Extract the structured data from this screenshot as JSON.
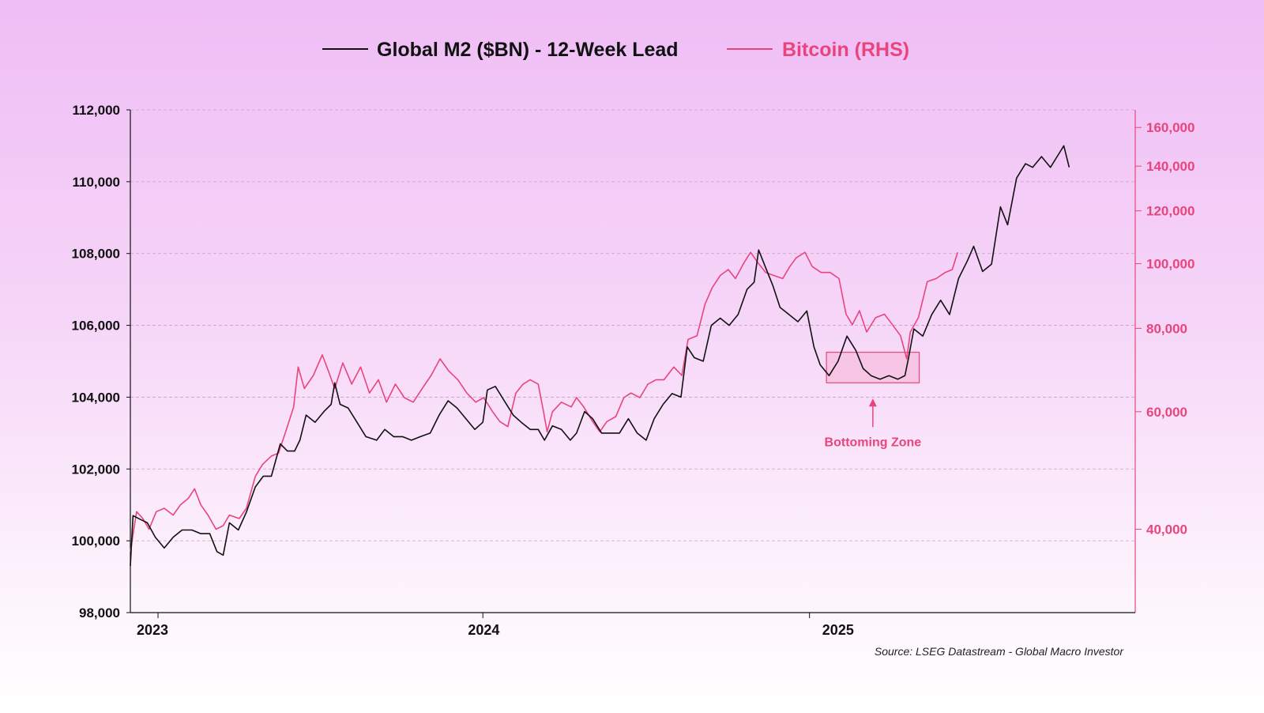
{
  "chart_data": {
    "type": "line",
    "title": "",
    "legend": {
      "placement": "top-center",
      "entries": [
        {
          "label": "Global M2 ($BN) - 12-Week Lead",
          "color": "#111111"
        },
        {
          "label": "Bitcoin (RHS)",
          "color": "#e8457d"
        }
      ]
    },
    "grid": true,
    "x_axis": {
      "tick_labels": [
        "2023",
        "2024",
        "2025"
      ],
      "range": [
        "2022-12-01",
        "2025-12-31"
      ],
      "year_ticks": [
        "2023-01-01",
        "2023-12-31",
        "2024-12-31"
      ]
    },
    "y_left": {
      "label": "",
      "range": [
        98000,
        112000
      ],
      "ticks": [
        98000,
        100000,
        102000,
        104000,
        106000,
        108000,
        110000,
        112000
      ],
      "tick_labels": [
        "98,000",
        "100,000",
        "102,000",
        "104,000",
        "106,000",
        "108,000",
        "110,000",
        "112,000"
      ]
    },
    "y_right": {
      "label": "",
      "scale": "log",
      "range": [
        30000,
        170000
      ],
      "ticks": [
        40000,
        60000,
        80000,
        100000,
        120000,
        140000,
        160000
      ],
      "tick_labels": [
        "40,000",
        "60,000",
        "80,000",
        "100,000",
        "120,000",
        "140,000",
        "160,000"
      ],
      "color": "#e8457d"
    },
    "series": [
      {
        "name": "Global M2 ($BN) - 12-Week Lead",
        "axis": "left",
        "color": "#111111",
        "points": [
          [
            "2022-12-01",
            99300
          ],
          [
            "2022-12-04",
            100700
          ],
          [
            "2022-12-12",
            100600
          ],
          [
            "2022-12-20",
            100500
          ],
          [
            "2022-12-29",
            100100
          ],
          [
            "2023-01-08",
            99800
          ],
          [
            "2023-01-18",
            100100
          ],
          [
            "2023-01-28",
            100300
          ],
          [
            "2023-02-08",
            100300
          ],
          [
            "2023-02-18",
            100200
          ],
          [
            "2023-02-28",
            100200
          ],
          [
            "2023-03-08",
            99700
          ],
          [
            "2023-03-15",
            99600
          ],
          [
            "2023-03-22",
            100500
          ],
          [
            "2023-04-01",
            100300
          ],
          [
            "2023-04-10",
            100800
          ],
          [
            "2023-04-20",
            101500
          ],
          [
            "2023-04-29",
            101800
          ],
          [
            "2023-05-08",
            101800
          ],
          [
            "2023-05-18",
            102700
          ],
          [
            "2023-05-26",
            102500
          ],
          [
            "2023-06-03",
            102500
          ],
          [
            "2023-06-09",
            102800
          ],
          [
            "2023-06-16",
            103500
          ],
          [
            "2023-06-26",
            103300
          ],
          [
            "2023-07-06",
            103600
          ],
          [
            "2023-07-14",
            103800
          ],
          [
            "2023-07-18",
            104400
          ],
          [
            "2023-07-24",
            103800
          ],
          [
            "2023-08-02",
            103700
          ],
          [
            "2023-08-12",
            103300
          ],
          [
            "2023-08-22",
            102900
          ],
          [
            "2023-09-03",
            102800
          ],
          [
            "2023-09-12",
            103100
          ],
          [
            "2023-09-22",
            102900
          ],
          [
            "2023-10-02",
            102900
          ],
          [
            "2023-10-12",
            102800
          ],
          [
            "2023-10-22",
            102900
          ],
          [
            "2023-11-02",
            103000
          ],
          [
            "2023-11-12",
            103500
          ],
          [
            "2023-11-22",
            103900
          ],
          [
            "2023-12-02",
            103700
          ],
          [
            "2023-12-12",
            103400
          ],
          [
            "2023-12-22",
            103100
          ],
          [
            "2023-12-31",
            103300
          ],
          [
            "2024-01-05",
            104200
          ],
          [
            "2024-01-14",
            104300
          ],
          [
            "2024-01-24",
            103900
          ],
          [
            "2024-02-03",
            103500
          ],
          [
            "2024-02-12",
            103300
          ],
          [
            "2024-02-22",
            103100
          ],
          [
            "2024-03-02",
            103100
          ],
          [
            "2024-03-09",
            102800
          ],
          [
            "2024-03-18",
            103200
          ],
          [
            "2024-03-28",
            103100
          ],
          [
            "2024-04-07",
            102800
          ],
          [
            "2024-04-14",
            103000
          ],
          [
            "2024-04-23",
            103600
          ],
          [
            "2024-05-02",
            103400
          ],
          [
            "2024-05-12",
            103000
          ],
          [
            "2024-05-22",
            103000
          ],
          [
            "2024-06-01",
            103000
          ],
          [
            "2024-06-11",
            103400
          ],
          [
            "2024-06-21",
            103000
          ],
          [
            "2024-07-01",
            102800
          ],
          [
            "2024-07-10",
            103400
          ],
          [
            "2024-07-20",
            103800
          ],
          [
            "2024-07-30",
            104100
          ],
          [
            "2024-08-09",
            104000
          ],
          [
            "2024-08-16",
            105400
          ],
          [
            "2024-08-24",
            105100
          ],
          [
            "2024-09-03",
            105000
          ],
          [
            "2024-09-12",
            106000
          ],
          [
            "2024-09-22",
            106200
          ],
          [
            "2024-10-02",
            106000
          ],
          [
            "2024-10-12",
            106300
          ],
          [
            "2024-10-22",
            107000
          ],
          [
            "2024-10-30",
            107200
          ],
          [
            "2024-11-04",
            108100
          ],
          [
            "2024-11-12",
            107600
          ],
          [
            "2024-11-20",
            107100
          ],
          [
            "2024-11-28",
            106500
          ],
          [
            "2024-12-08",
            106300
          ],
          [
            "2024-12-18",
            106100
          ],
          [
            "2024-12-28",
            106400
          ],
          [
            "2025-01-05",
            105400
          ],
          [
            "2025-01-12",
            104900
          ],
          [
            "2025-01-22",
            104600
          ],
          [
            "2025-02-01",
            105000
          ],
          [
            "2025-02-11",
            105700
          ],
          [
            "2025-02-21",
            105300
          ],
          [
            "2025-03-01",
            104800
          ],
          [
            "2025-03-10",
            104600
          ],
          [
            "2025-03-20",
            104500
          ],
          [
            "2025-03-30",
            104600
          ],
          [
            "2025-04-09",
            104500
          ],
          [
            "2025-04-17",
            104600
          ],
          [
            "2025-04-21",
            105100
          ],
          [
            "2025-04-27",
            105900
          ],
          [
            "2025-05-07",
            105700
          ],
          [
            "2025-05-17",
            106300
          ],
          [
            "2025-05-27",
            106700
          ],
          [
            "2025-06-06",
            106300
          ],
          [
            "2025-06-16",
            107300
          ],
          [
            "2025-06-26",
            107800
          ],
          [
            "2025-07-03",
            108200
          ],
          [
            "2025-07-13",
            107500
          ],
          [
            "2025-07-23",
            107700
          ],
          [
            "2025-08-02",
            109300
          ],
          [
            "2025-08-10",
            108800
          ],
          [
            "2025-08-20",
            110100
          ],
          [
            "2025-08-30",
            110500
          ],
          [
            "2025-09-07",
            110400
          ],
          [
            "2025-09-17",
            110700
          ],
          [
            "2025-09-27",
            110400
          ],
          [
            "2025-10-07",
            110800
          ],
          [
            "2025-10-12",
            111000
          ],
          [
            "2025-10-18",
            110400
          ]
        ]
      },
      {
        "name": "Bitcoin (RHS)",
        "axis": "right",
        "color": "#e8457d",
        "points": [
          [
            "2022-12-01",
            37000
          ],
          [
            "2022-12-08",
            42500
          ],
          [
            "2022-12-15",
            41500
          ],
          [
            "2022-12-22",
            40000
          ],
          [
            "2022-12-30",
            42500
          ],
          [
            "2023-01-08",
            43000
          ],
          [
            "2023-01-18",
            42000
          ],
          [
            "2023-01-26",
            43500
          ],
          [
            "2023-02-04",
            44500
          ],
          [
            "2023-02-11",
            46000
          ],
          [
            "2023-02-18",
            43500
          ],
          [
            "2023-02-26",
            42000
          ],
          [
            "2023-03-07",
            40000
          ],
          [
            "2023-03-15",
            40500
          ],
          [
            "2023-03-22",
            42000
          ],
          [
            "2023-04-02",
            41500
          ],
          [
            "2023-04-10",
            43000
          ],
          [
            "2023-04-20",
            48000
          ],
          [
            "2023-04-28",
            50000
          ],
          [
            "2023-05-08",
            51500
          ],
          [
            "2023-05-16",
            52000
          ],
          [
            "2023-05-24",
            56000
          ],
          [
            "2023-06-02",
            61000
          ],
          [
            "2023-06-07",
            70000
          ],
          [
            "2023-06-14",
            65000
          ],
          [
            "2023-06-24",
            68000
          ],
          [
            "2023-07-04",
            73000
          ],
          [
            "2023-07-11",
            69000
          ],
          [
            "2023-07-18",
            65000
          ],
          [
            "2023-07-27",
            71000
          ],
          [
            "2023-08-06",
            66000
          ],
          [
            "2023-08-16",
            70000
          ],
          [
            "2023-08-26",
            64000
          ],
          [
            "2023-09-05",
            67000
          ],
          [
            "2023-09-14",
            62000
          ],
          [
            "2023-09-24",
            66000
          ],
          [
            "2023-10-04",
            63000
          ],
          [
            "2023-10-14",
            62000
          ],
          [
            "2023-10-24",
            65000
          ],
          [
            "2023-11-03",
            68000
          ],
          [
            "2023-11-13",
            72000
          ],
          [
            "2023-11-23",
            69000
          ],
          [
            "2023-12-03",
            67000
          ],
          [
            "2023-12-13",
            64000
          ],
          [
            "2023-12-23",
            62000
          ],
          [
            "2024-01-01",
            63000
          ],
          [
            "2024-01-11",
            60000
          ],
          [
            "2024-01-19",
            58000
          ],
          [
            "2024-01-28",
            57000
          ],
          [
            "2024-02-06",
            64000
          ],
          [
            "2024-02-14",
            66000
          ],
          [
            "2024-02-22",
            67000
          ],
          [
            "2024-03-02",
            66000
          ],
          [
            "2024-03-08",
            60000
          ],
          [
            "2024-03-12",
            56000
          ],
          [
            "2024-03-18",
            60000
          ],
          [
            "2024-03-28",
            62000
          ],
          [
            "2024-04-08",
            61000
          ],
          [
            "2024-04-14",
            63000
          ],
          [
            "2024-04-22",
            61000
          ],
          [
            "2024-05-02",
            58000
          ],
          [
            "2024-05-10",
            56000
          ],
          [
            "2024-05-18",
            58000
          ],
          [
            "2024-05-28",
            59000
          ],
          [
            "2024-06-06",
            63000
          ],
          [
            "2024-06-14",
            64000
          ],
          [
            "2024-06-24",
            63000
          ],
          [
            "2024-07-03",
            66000
          ],
          [
            "2024-07-12",
            67000
          ],
          [
            "2024-07-21",
            67000
          ],
          [
            "2024-08-01",
            70000
          ],
          [
            "2024-08-10",
            68000
          ],
          [
            "2024-08-17",
            77000
          ],
          [
            "2024-08-27",
            78000
          ],
          [
            "2024-09-05",
            87000
          ],
          [
            "2024-09-13",
            92000
          ],
          [
            "2024-09-22",
            96000
          ],
          [
            "2024-10-01",
            98000
          ],
          [
            "2024-10-09",
            95000
          ],
          [
            "2024-10-18",
            100000
          ],
          [
            "2024-10-26",
            104000
          ],
          [
            "2024-11-04",
            100000
          ],
          [
            "2024-11-12",
            97000
          ],
          [
            "2024-11-21",
            96000
          ],
          [
            "2024-12-01",
            95000
          ],
          [
            "2024-12-09",
            99000
          ],
          [
            "2024-12-16",
            102000
          ],
          [
            "2024-12-26",
            104000
          ],
          [
            "2025-01-03",
            99000
          ],
          [
            "2025-01-13",
            97000
          ],
          [
            "2025-01-23",
            97000
          ],
          [
            "2025-02-02",
            95000
          ],
          [
            "2025-02-10",
            84000
          ],
          [
            "2025-02-17",
            81000
          ],
          [
            "2025-02-25",
            85000
          ],
          [
            "2025-03-05",
            79000
          ],
          [
            "2025-03-15",
            83000
          ],
          [
            "2025-03-25",
            84000
          ],
          [
            "2025-04-03",
            81000
          ],
          [
            "2025-04-12",
            78000
          ],
          [
            "2025-04-19",
            72000
          ],
          [
            "2025-04-23",
            79000
          ],
          [
            "2025-05-02",
            83000
          ],
          [
            "2025-05-12",
            94000
          ],
          [
            "2025-05-22",
            95000
          ],
          [
            "2025-06-01",
            97000
          ],
          [
            "2025-06-09",
            98000
          ],
          [
            "2025-06-15",
            104000
          ]
        ]
      }
    ],
    "annotations": [
      {
        "text": "Bottoming Zone",
        "type": "box-with-arrow",
        "x_range": [
          "2025-01-19",
          "2025-05-03"
        ],
        "y_range": [
          104400,
          105250
        ],
        "color": "#e8457d"
      }
    ],
    "source": "Source: LSEG Datastream - Global Macro Investor"
  }
}
